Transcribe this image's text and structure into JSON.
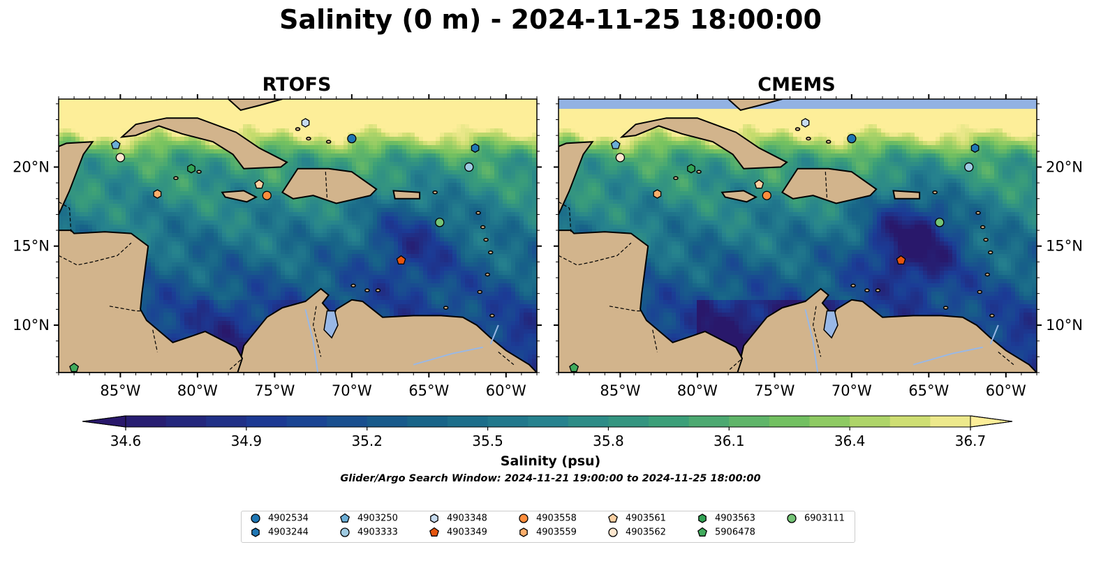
{
  "title": "Salinity (0 m) - 2024-11-25 18:00:00",
  "panels": [
    {
      "name": "RTOFS"
    },
    {
      "name": "CMEMS"
    }
  ],
  "map": {
    "lon_range": [
      -89,
      -58
    ],
    "lat_range": [
      7,
      24.3
    ],
    "x_ticks": [
      "85°W",
      "80°W",
      "75°W",
      "70°W",
      "65°W",
      "60°W"
    ],
    "y_ticks": [
      "20°N",
      "15°N",
      "10°N"
    ],
    "colors": {
      "land": "#d2b48c",
      "lake": "#99b8e6",
      "pacific": "#2a1d6b"
    }
  },
  "colorbar": {
    "label": "Salinity (psu)",
    "ticks": [
      "34.6",
      "34.9",
      "35.2",
      "35.5",
      "35.8",
      "36.1",
      "36.4",
      "36.7"
    ],
    "min": 34.6,
    "max": 36.7,
    "extend": "both",
    "colormap": "haline"
  },
  "search_window": "Glider/Argo Search Window: 2024-11-21 19:00:00 to 2024-11-25 18:00:00",
  "legend": [
    {
      "id": "4902534",
      "marker": "circle",
      "color": "#1f77b4"
    },
    {
      "id": "4903244",
      "marker": "hexagon",
      "color": "#1f77b4"
    },
    {
      "id": "4903250",
      "marker": "pentagon",
      "color": "#6baed6"
    },
    {
      "id": "4903333",
      "marker": "circle",
      "color": "#9ecae1"
    },
    {
      "id": "4903348",
      "marker": "hexagon",
      "color": "#c6dbef"
    },
    {
      "id": "4903349",
      "marker": "pentagon",
      "color": "#e6550d"
    },
    {
      "id": "4903558",
      "marker": "circle",
      "color": "#fd8d3c"
    },
    {
      "id": "4903559",
      "marker": "hexagon",
      "color": "#fdae6b"
    },
    {
      "id": "4903561",
      "marker": "pentagon",
      "color": "#fdd0a2"
    },
    {
      "id": "4903562",
      "marker": "circle",
      "color": "#fee6ce"
    },
    {
      "id": "4903563",
      "marker": "hexagon",
      "color": "#31a354"
    },
    {
      "id": "5906478",
      "marker": "pentagon",
      "color": "#41ab5d"
    },
    {
      "id": "6903111",
      "marker": "circle",
      "color": "#74c476"
    }
  ],
  "floats": [
    {
      "id": "4902534",
      "lon": -70.0,
      "lat": 21.8
    },
    {
      "id": "4903244",
      "lon": -62.0,
      "lat": 21.2
    },
    {
      "id": "4903250",
      "lon": -85.3,
      "lat": 21.4
    },
    {
      "id": "4903333",
      "lon": -62.4,
      "lat": 20.0
    },
    {
      "id": "4903348",
      "lon": -73.0,
      "lat": 22.8
    },
    {
      "id": "4903349",
      "lon": -66.8,
      "lat": 14.1
    },
    {
      "id": "4903558",
      "lon": -75.5,
      "lat": 18.2
    },
    {
      "id": "4903559",
      "lon": -82.6,
      "lat": 18.3
    },
    {
      "id": "4903561",
      "lon": -76.0,
      "lat": 18.9
    },
    {
      "id": "4903562",
      "lon": -85.0,
      "lat": 20.6
    },
    {
      "id": "4903563",
      "lon": -80.4,
      "lat": 19.9
    },
    {
      "id": "5906478",
      "lon": -88.0,
      "lat": 7.3
    },
    {
      "id": "6903111",
      "lon": -64.3,
      "lat": 16.5
    }
  ]
}
